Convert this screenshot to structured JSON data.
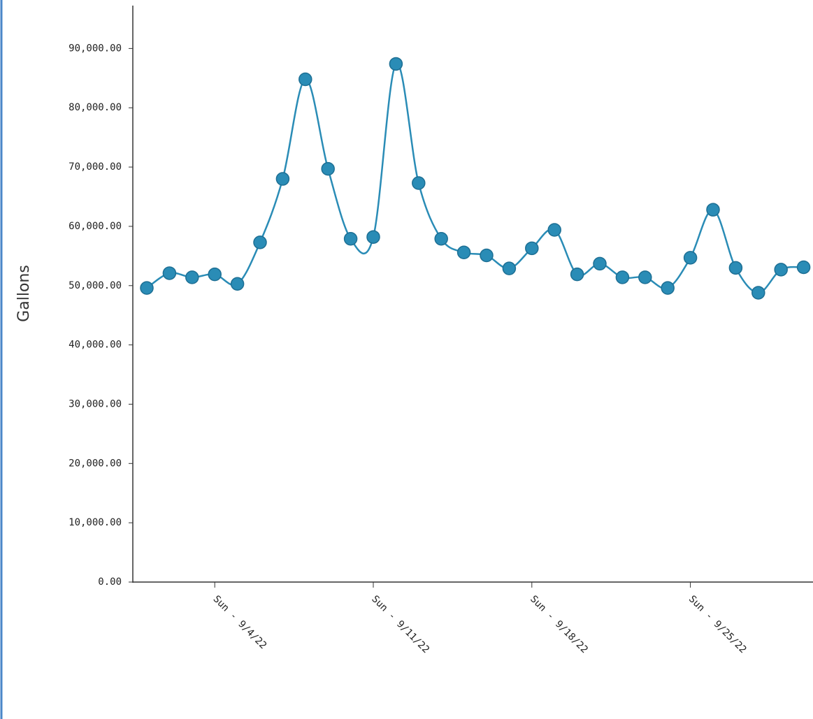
{
  "chart_data": {
    "type": "line",
    "y_label": "Gallons",
    "categories": [
      null,
      null,
      null,
      "Sun - 9/4/22",
      null,
      null,
      null,
      null,
      null,
      null,
      "Sun - 9/11/22",
      null,
      null,
      null,
      null,
      null,
      null,
      "Sun - 9/18/22",
      null,
      null,
      null,
      null,
      null,
      null,
      "Sun - 9/25/22",
      null,
      null,
      null,
      null,
      null
    ],
    "series": [
      {
        "color": "#2a8cb6",
        "values": [
          49600,
          52100,
          51400,
          51900,
          50300,
          57300,
          68000,
          84800,
          69700,
          57900,
          58200,
          87400,
          67300,
          57900,
          55600,
          55100,
          52900,
          56300,
          59400,
          51900,
          53700,
          51400,
          51400,
          49600,
          54700,
          62800,
          53000,
          48800,
          52700,
          53100
        ]
      }
    ],
    "ylim": [
      0,
      97000
    ],
    "yticks": [
      {
        "value": 0,
        "label": "0.00"
      },
      {
        "value": 10000,
        "label": "10,000.00"
      },
      {
        "value": 20000,
        "label": "20,000.00"
      },
      {
        "value": 30000,
        "label": "30,000.00"
      },
      {
        "value": 40000,
        "label": "40,000.00"
      },
      {
        "value": 50000,
        "label": "50,000.00"
      },
      {
        "value": 60000,
        "label": "60,000.00"
      },
      {
        "value": 70000,
        "label": "70,000.00"
      },
      {
        "value": 80000,
        "label": "80,000.00"
      },
      {
        "value": 90000,
        "label": "90,000.00"
      }
    ],
    "grid": false
  }
}
